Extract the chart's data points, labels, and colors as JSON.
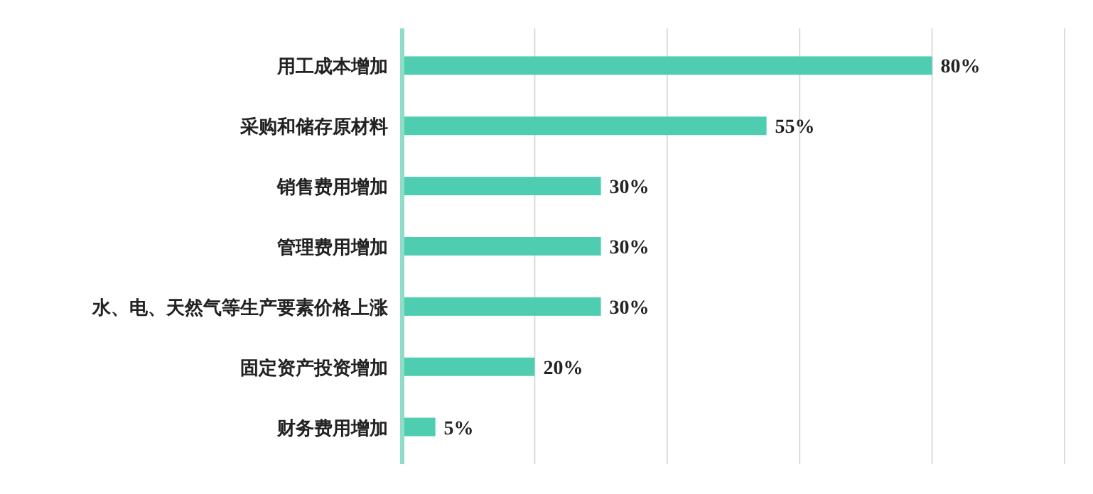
{
  "chart_data": {
    "type": "bar",
    "orientation": "horizontal",
    "categories": [
      "用工成本增加",
      "采购和储存原材料",
      "销售费用增加",
      "管理费用增加",
      "水、电、天然气等生产要素价格上涨",
      "固定资产投资增加",
      "财务费用增加"
    ],
    "values": [
      80,
      55,
      30,
      30,
      30,
      20,
      5
    ],
    "value_labels": [
      "80%",
      "55%",
      "30%",
      "30%",
      "30%",
      "20%",
      "5%"
    ],
    "color": "#4ecdb0",
    "xlim": [
      0,
      100
    ],
    "xticks": [
      {
        "value": 20,
        "label": null
      },
      {
        "value": 40,
        "label": null
      },
      {
        "value": 60,
        "label": null
      },
      {
        "value": 80,
        "label": null
      },
      {
        "value": 100,
        "label": null
      }
    ],
    "grid": "x",
    "tick_labels": "y"
  }
}
